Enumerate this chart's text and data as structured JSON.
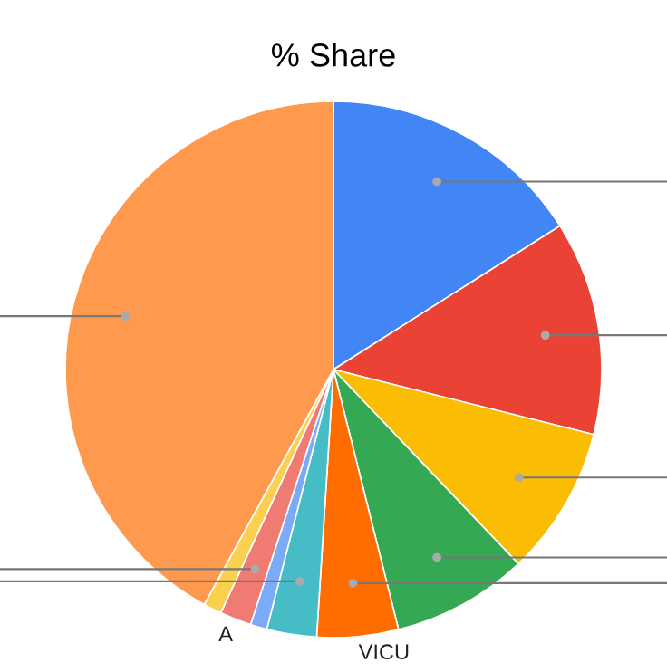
{
  "chart_data": {
    "type": "pie",
    "title": "% Share",
    "categories": [
      null,
      null,
      null,
      null,
      "VICU",
      null,
      null,
      "A",
      null,
      null
    ],
    "values": [
      16.0,
      12.9,
      9.0,
      8.2,
      4.9,
      3.0,
      1.0,
      1.9,
      1.1,
      42.0
    ],
    "colors": [
      "#4285f4",
      "#ea4335",
      "#fbbc04",
      "#34a853",
      "#ff6d01",
      "#46bdc6",
      "#7baaf7",
      "#f07b72",
      "#fcd04f",
      "#ff994d"
    ],
    "legend": false
  }
}
